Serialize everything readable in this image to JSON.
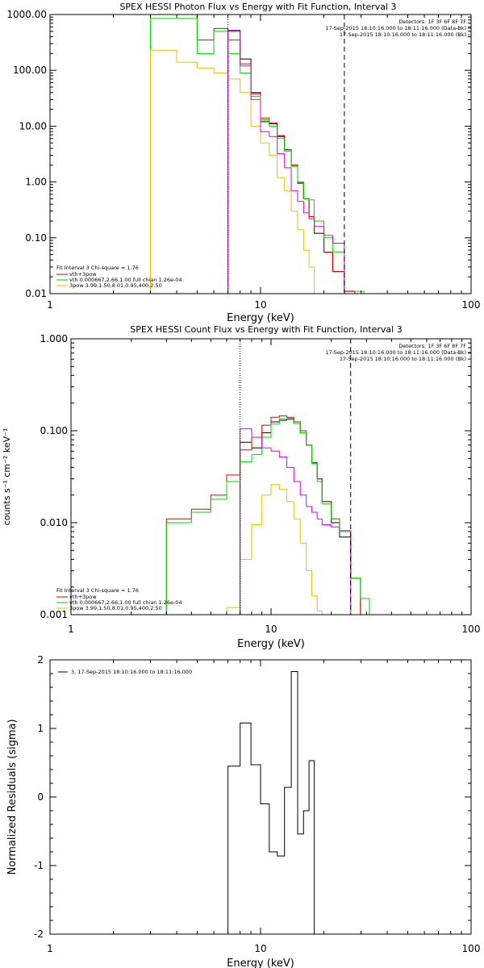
{
  "chart_data": [
    {
      "type": "line",
      "title": "SPEX HESSI Photon Flux vs Energy with Fit Function, Interval 3",
      "xlabel": "Energy (keV)",
      "ylabel": "",
      "xscale": "log",
      "yscale": "log",
      "xlim": [
        1,
        100
      ],
      "ylim": [
        0.01,
        1000
      ],
      "xticklabels": [
        "1",
        "10",
        "100"
      ],
      "yticklabels": [
        "0.01",
        "0.10",
        "1.00",
        "10.00",
        "100.00",
        "1000.00"
      ],
      "header": [
        "Detectors: 1F 3F 6F 8F 7F",
        "17-Sep-2015 18:10:16.000 to 18:11:16.000 (Data-Bk)",
        "17-Sep-2015 18:10:16.000 to 18:11:16.000 (Bk)"
      ],
      "fit_info": "Fit Interval 3   Chi-square = 1.76",
      "legend": [
        "vth+3pow",
        "vth 0.000667,2.66,1.00  full chian 1.26e-04",
        "3pow 3.99,1.50,8.01,0.95,400,2.50"
      ],
      "vlines": [
        {
          "x": 7,
          "style": "dotted"
        },
        {
          "x": 25,
          "style": "dashed"
        }
      ],
      "edges": [
        3,
        4,
        5,
        6,
        7,
        8,
        9,
        10,
        11,
        12,
        13,
        14,
        15,
        16,
        17,
        18,
        20,
        22,
        25,
        28,
        31
      ],
      "series": [
        {
          "values": [
            null,
            null,
            null,
            null,
            520,
            160,
            40,
            12,
            11,
            6.5,
            3.6,
            2.0,
            0.95,
            0.5,
            0.24,
            0.12,
            0.055,
            0.025,
            0.011,
            null
          ]
        },
        {
          "values": [
            1000,
            1000,
            350,
            560,
            350,
            130,
            38,
            14,
            11.5,
            6.8,
            3.8,
            2.0,
            1.0,
            0.5,
            0.24,
            0.12,
            0.055,
            0.025,
            0.011,
            null
          ]
        },
        {
          "values": [
            850,
            850,
            200,
            500,
            200,
            90,
            34,
            13,
            10,
            6.0,
            3.6,
            1.9,
            1.0,
            0.5,
            0.48,
            0.2,
            0.1,
            0.056,
            0.01,
            0.011
          ]
        },
        {
          "values": [
            230,
            140,
            110,
            90,
            70,
            40,
            10,
            5,
            3,
            1.2,
            0.7,
            0.3,
            0.14,
            0.06,
            0.03,
            0.01,
            null,
            null,
            null,
            null
          ]
        },
        {
          "values": [
            null,
            null,
            null,
            null,
            500,
            120,
            30,
            8,
            6.5,
            3.2,
            1.8,
            0.7,
            0.45,
            0.28,
            0.22,
            0.16,
            0.11,
            0.08,
            null,
            null
          ]
        }
      ],
      "colors": [
        "#000000",
        "#e00000",
        "#00d800",
        "#e6c000",
        "#e000e0"
      ]
    },
    {
      "type": "line",
      "title": "SPEX HESSI Count Flux vs Energy with Fit Function, Interval 3",
      "xlabel": "Energy (keV)",
      "ylabel": "counts s⁻¹ cm⁻² keV⁻¹",
      "xscale": "log",
      "yscale": "log",
      "xlim": [
        1,
        100
      ],
      "ylim": [
        0.001,
        1
      ],
      "xticklabels": [
        "1",
        "10",
        "100"
      ],
      "yticklabels": [
        "0.001",
        "0.010",
        "0.100",
        "1.000"
      ],
      "header": [
        "Detectors: 1F 3F 6F 8F 7F",
        "17-Sep-2015 18:10:16.000 to 18:11:16.000 (Data-Bk)",
        "17-Sep-2015 18:10:16.000 to 18:11:16.000 (Bk)"
      ],
      "fit_info": "Fit Interval 3   Chi-square = 1.76",
      "legend": [
        "vth+3pow",
        "vth 0.000667,2.66,1.00  full chian 1.26e-04",
        "3pow 3.99,1.50,8.01,0.95,400,2.50"
      ],
      "vlines": [
        {
          "x": 7,
          "style": "dotted"
        },
        {
          "x": 25,
          "style": "dashed"
        }
      ],
      "edges": [
        3,
        4,
        5,
        6,
        7,
        8,
        9,
        10,
        11,
        12,
        13,
        14,
        15,
        16,
        17,
        18,
        20,
        22,
        25,
        28,
        31
      ],
      "series": [
        {
          "values": [
            null,
            null,
            null,
            null,
            0.075,
            0.065,
            0.095,
            0.125,
            0.13,
            0.135,
            0.12,
            0.095,
            0.07,
            0.045,
            0.03,
            0.017,
            0.01,
            0.007,
            0.0025,
            null
          ]
        },
        {
          "values": [
            0.011,
            0.014,
            0.02,
            0.033,
            0.062,
            0.085,
            0.115,
            0.14,
            0.145,
            0.14,
            0.125,
            0.1,
            0.07,
            0.045,
            0.03,
            0.017,
            0.011,
            0.008,
            0.0025,
            null
          ]
        },
        {
          "values": [
            0.01,
            0.013,
            0.018,
            0.028,
            0.046,
            0.055,
            0.085,
            0.118,
            0.135,
            0.133,
            0.12,
            0.095,
            0.07,
            0.044,
            0.028,
            0.016,
            0.011,
            0.008,
            0.0025,
            0.0015
          ]
        },
        {
          "values": [
            null,
            null,
            null,
            0.0012,
            0.004,
            0.0095,
            0.02,
            0.026,
            0.023,
            0.017,
            0.011,
            0.006,
            0.003,
            0.0016,
            0.0011,
            null,
            null,
            null,
            null,
            null
          ]
        },
        {
          "values": [
            null,
            null,
            null,
            null,
            0.105,
            0.085,
            0.065,
            0.06,
            0.052,
            0.04,
            0.028,
            0.02,
            0.015,
            0.013,
            0.011,
            0.0095,
            0.009,
            0.0082,
            null,
            null
          ]
        }
      ],
      "colors": [
        "#000000",
        "#e00000",
        "#00d800",
        "#e6c000",
        "#e000e0"
      ]
    },
    {
      "type": "line",
      "title": "",
      "xlabel": "Energy (keV)",
      "ylabel": "Normalized Residuals (sigma)",
      "xscale": "log",
      "yscale": "linear",
      "xlim": [
        1,
        100
      ],
      "ylim": [
        -2,
        2
      ],
      "xticklabels": [
        "1",
        "10",
        "100"
      ],
      "yticklabels": [
        "-2",
        "-1",
        "0",
        "1",
        "2"
      ],
      "legend": [
        "3, 17-Sep-2015 18:10:16.000 to 18:11:16.000"
      ],
      "edges": [
        7,
        8,
        9,
        10,
        11,
        12,
        13,
        14,
        15,
        16,
        17,
        18,
        20,
        22,
        25
      ],
      "series": [
        {
          "values": [
            0.45,
            1.08,
            0.47,
            -0.1,
            -0.8,
            -0.86,
            0.14,
            1.83,
            -0.54,
            -0.2,
            0.53,
            -2.0,
            -2.0,
            -2.0
          ]
        }
      ],
      "colors": [
        "#000000"
      ]
    }
  ]
}
